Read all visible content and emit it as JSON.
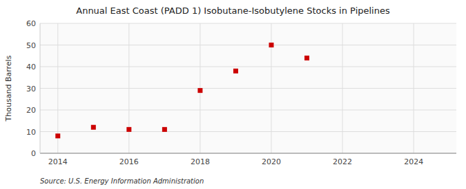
{
  "chart_data": {
    "type": "scatter",
    "title": "Annual East Coast (PADD 1) Isobutane-Isobutylene Stocks in Pipelines",
    "y_label": "Thousand Barrels",
    "annotations": [
      "Source: U.S. Energy Information Administration"
    ],
    "x": [
      2014,
      2015,
      2016,
      2017,
      2018,
      2019,
      2020,
      2021
    ],
    "values": [
      8,
      12,
      11,
      11,
      29,
      38,
      50,
      44
    ],
    "color": "#cc0000",
    "marker": "square",
    "xlim": [
      2013.5,
      2025.2
    ],
    "ylim": [
      0,
      60
    ],
    "xticks": [
      2014,
      2016,
      2018,
      2020,
      2022,
      2024
    ],
    "yticks": [
      0,
      10,
      20,
      30,
      40,
      50,
      60
    ],
    "grid": true
  }
}
